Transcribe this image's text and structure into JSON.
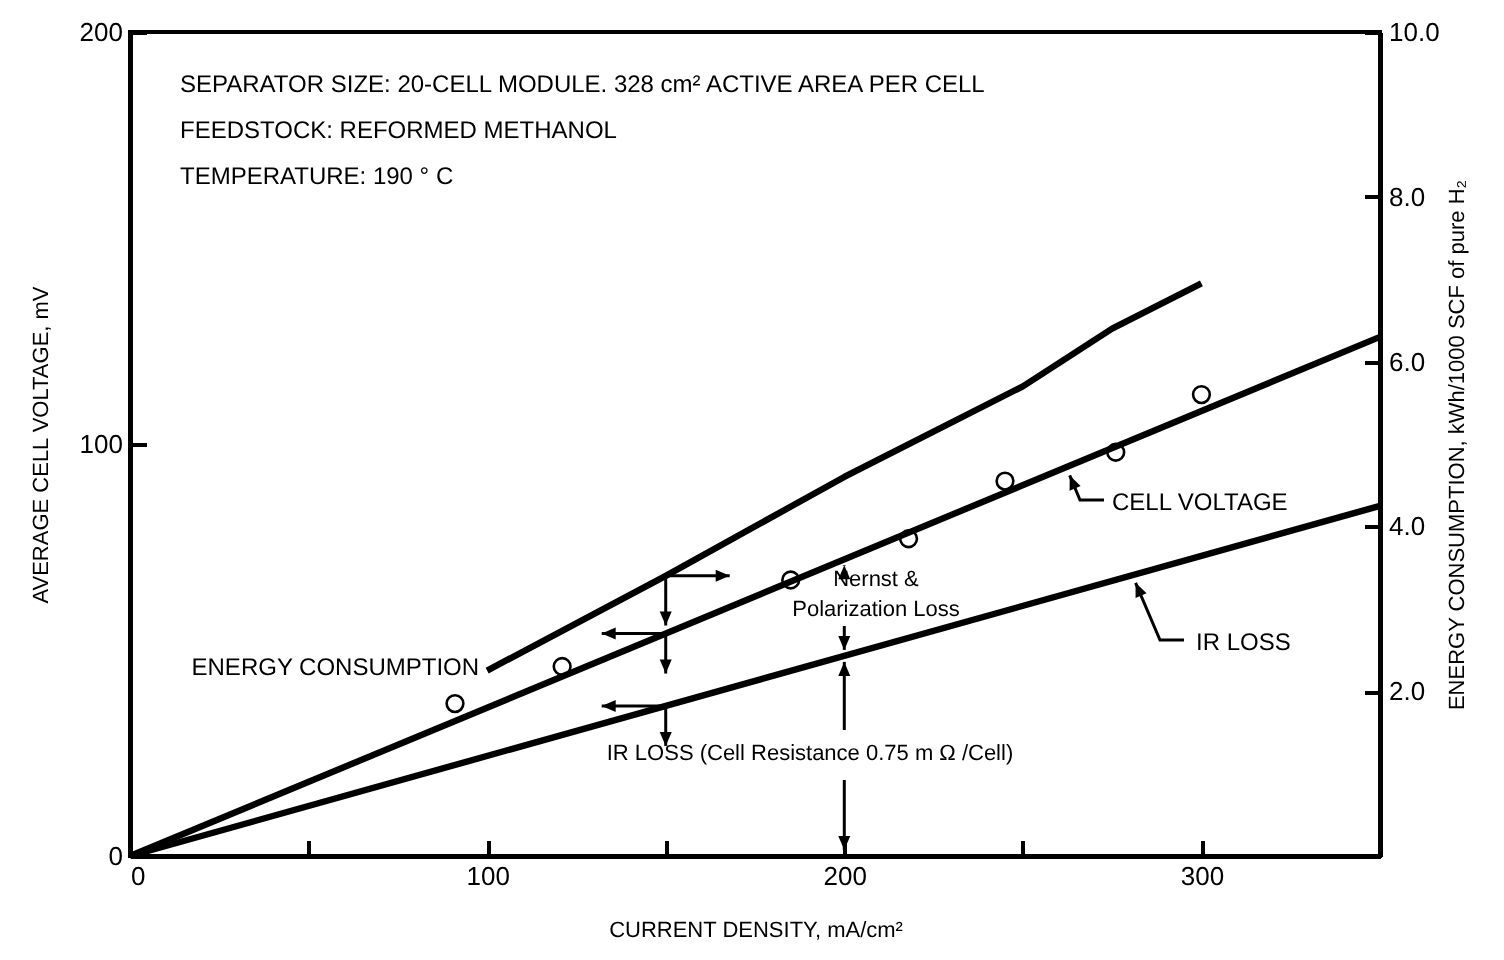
{
  "chart_data": {
    "type": "line",
    "xlabel": "CURRENT DENSITY, mA/cm²",
    "ylabel": "AVERAGE CELL VOLTAGE, mV",
    "y2label": "ENERGY CONSUMPTION, kWh/1000 SCF of pure H₂",
    "xlim": [
      0,
      350
    ],
    "xticks": [
      0,
      {
        "value": 50,
        "label": null
      },
      100,
      {
        "value": 150,
        "label": null
      },
      200,
      {
        "value": 250,
        "label": null
      },
      300
    ],
    "ylim": [
      0,
      200
    ],
    "yticks": [
      0,
      100,
      200
    ],
    "y2lim": [
      0,
      10
    ],
    "y2ticks": [
      {
        "value": 2,
        "label": "2.0"
      },
      {
        "value": 4,
        "label": "4.0"
      },
      {
        "value": 6,
        "label": "6.0"
      },
      {
        "value": 8,
        "label": "8.0"
      },
      {
        "value": 10,
        "label": "10.0"
      }
    ],
    "series": [
      {
        "name": "ENERGY CONSUMPTION",
        "type": "line",
        "axis": "y2",
        "color": "#000000",
        "x": [
          100,
          150,
          200,
          250,
          275,
          300
        ],
        "values": [
          2.25,
          3.4,
          4.6,
          5.7,
          6.4,
          6.95
        ]
      },
      {
        "name": "CELL VOLTAGE",
        "type": "line",
        "color": "#000000",
        "x": [
          0,
          350
        ],
        "values": [
          0,
          126
        ]
      },
      {
        "name": "IR LOSS",
        "type": "line",
        "color": "#000000",
        "x": [
          0,
          350
        ],
        "values": [
          0,
          85
        ]
      },
      {
        "type": "scatter",
        "marker": "circle",
        "color": "#000000",
        "x": [
          91,
          121,
          185,
          218,
          245,
          276,
          300
        ],
        "values": [
          37,
          46,
          67,
          77,
          91,
          98,
          112
        ]
      }
    ],
    "annotations": [
      "SEPARATOR SIZE: 20-CELL MODULE. 328 cm² ACTIVE AREA PER CELL",
      "FEEDSTOCK: REFORMED METHANOL",
      "TEMPERATURE: 190 ° C",
      "Nernst & Polarization Loss",
      "IR LOSS (Cell Resistance 0.75 m Ω /Cell)"
    ]
  }
}
